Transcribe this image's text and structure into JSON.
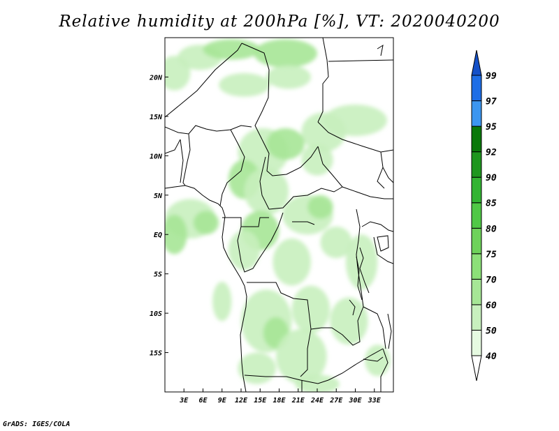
{
  "title": "Relative humidity at 200hPa [%], VT: 2020040200",
  "credit": "GrADS: IGES/COLA",
  "map": {
    "lon_range": [
      0,
      36
    ],
    "lat_range": [
      -20,
      25
    ],
    "lat_ticks": [
      {
        "value": 20,
        "label": "20N"
      },
      {
        "value": 15,
        "label": "15N"
      },
      {
        "value": 10,
        "label": "10N"
      },
      {
        "value": 5,
        "label": "5N"
      },
      {
        "value": 0,
        "label": "EQ"
      },
      {
        "value": -5,
        "label": "5S"
      },
      {
        "value": -10,
        "label": "10S"
      },
      {
        "value": -15,
        "label": "15S"
      }
    ],
    "lon_ticks": [
      {
        "value": 3,
        "label": "3E"
      },
      {
        "value": 6,
        "label": "6E"
      },
      {
        "value": 9,
        "label": "9E"
      },
      {
        "value": 12,
        "label": "12E"
      },
      {
        "value": 15,
        "label": "15E"
      },
      {
        "value": 18,
        "label": "18E"
      },
      {
        "value": 21,
        "label": "21E"
      },
      {
        "value": 24,
        "label": "24E"
      },
      {
        "value": 27,
        "label": "27E"
      },
      {
        "value": 30,
        "label": "30E"
      },
      {
        "value": 33,
        "label": "33E"
      }
    ]
  },
  "colorbar": {
    "levels": [
      "40",
      "50",
      "60",
      "70",
      "75",
      "80",
      "85",
      "90",
      "92",
      "95",
      "97",
      "99"
    ],
    "colors": [
      "#ffffff",
      "#e6fae1",
      "#c8f0be",
      "#a6e696",
      "#8ce078",
      "#6ed25a",
      "#50c846",
      "#32b432",
      "#1e961e",
      "#0a780a",
      "#3c96f0",
      "#1e6ee6",
      "#1450c8"
    ]
  },
  "field": {
    "blobs": [
      {
        "lon": 1.5,
        "lat": 20.5,
        "rx": 2.5,
        "ry": 2.2,
        "level": 1
      },
      {
        "lon": 5.5,
        "lat": 22.5,
        "rx": 3.5,
        "ry": 1.6,
        "level": 1
      },
      {
        "lon": 10.5,
        "lat": 23.5,
        "rx": 4.5,
        "ry": 1.3,
        "level": 2
      },
      {
        "lon": 19.0,
        "lat": 23.0,
        "rx": 5.0,
        "ry": 1.8,
        "level": 2
      },
      {
        "lon": 12.5,
        "lat": 19.0,
        "rx": 4.0,
        "ry": 1.5,
        "level": 1
      },
      {
        "lon": 19.5,
        "lat": 20.0,
        "rx": 3.5,
        "ry": 1.5,
        "level": 1
      },
      {
        "lon": 30.0,
        "lat": 14.5,
        "rx": 5.0,
        "ry": 2.0,
        "level": 1
      },
      {
        "lon": 25.0,
        "lat": 13.0,
        "rx": 3.5,
        "ry": 2.5,
        "level": 1
      },
      {
        "lon": 15.5,
        "lat": 10.5,
        "rx": 4.0,
        "ry": 3.0,
        "level": 1
      },
      {
        "lon": 19.0,
        "lat": 11.5,
        "rx": 3.0,
        "ry": 2.0,
        "level": 2
      },
      {
        "lon": 24.0,
        "lat": 9.5,
        "rx": 2.5,
        "ry": 2.0,
        "level": 1
      },
      {
        "lon": 12.5,
        "lat": 7.0,
        "rx": 2.5,
        "ry": 2.5,
        "level": 2
      },
      {
        "lon": 16.0,
        "lat": 5.5,
        "rx": 3.5,
        "ry": 3.0,
        "level": 1
      },
      {
        "lon": 4.0,
        "lat": 2.0,
        "rx": 4.0,
        "ry": 2.5,
        "level": 1
      },
      {
        "lon": 1.5,
        "lat": 0.0,
        "rx": 2.0,
        "ry": 2.5,
        "level": 2
      },
      {
        "lon": 6.5,
        "lat": 1.5,
        "rx": 2.0,
        "ry": 1.5,
        "level": 2
      },
      {
        "lon": 15.0,
        "lat": 0.5,
        "rx": 3.0,
        "ry": 2.5,
        "level": 2
      },
      {
        "lon": 12.5,
        "lat": -2.0,
        "rx": 2.5,
        "ry": 2.5,
        "level": 1
      },
      {
        "lon": 22.5,
        "lat": 2.5,
        "rx": 4.0,
        "ry": 2.5,
        "level": 1
      },
      {
        "lon": 24.5,
        "lat": 3.5,
        "rx": 2.0,
        "ry": 1.5,
        "level": 2
      },
      {
        "lon": 20.0,
        "lat": -3.5,
        "rx": 3.0,
        "ry": 3.0,
        "level": 1
      },
      {
        "lon": 27.0,
        "lat": -1.0,
        "rx": 2.5,
        "ry": 2.0,
        "level": 1
      },
      {
        "lon": 31.0,
        "lat": -3.5,
        "rx": 2.5,
        "ry": 3.5,
        "level": 1
      },
      {
        "lon": 9.0,
        "lat": -8.5,
        "rx": 1.5,
        "ry": 2.5,
        "level": 1
      },
      {
        "lon": 16.0,
        "lat": -11.0,
        "rx": 4.0,
        "ry": 4.0,
        "level": 1
      },
      {
        "lon": 17.5,
        "lat": -12.5,
        "rx": 2.0,
        "ry": 2.0,
        "level": 2
      },
      {
        "lon": 23.0,
        "lat": -9.5,
        "rx": 3.0,
        "ry": 3.0,
        "level": 1
      },
      {
        "lon": 29.0,
        "lat": -11.0,
        "rx": 3.0,
        "ry": 3.0,
        "level": 1
      },
      {
        "lon": 21.5,
        "lat": -15.5,
        "rx": 4.0,
        "ry": 3.5,
        "level": 1
      },
      {
        "lon": 14.5,
        "lat": -17.0,
        "rx": 3.0,
        "ry": 2.0,
        "level": 1
      },
      {
        "lon": 24.0,
        "lat": -19.0,
        "rx": 3.5,
        "ry": 1.2,
        "level": 1
      },
      {
        "lon": 33.5,
        "lat": -16.0,
        "rx": 2.0,
        "ry": 2.0,
        "level": 1
      }
    ]
  }
}
